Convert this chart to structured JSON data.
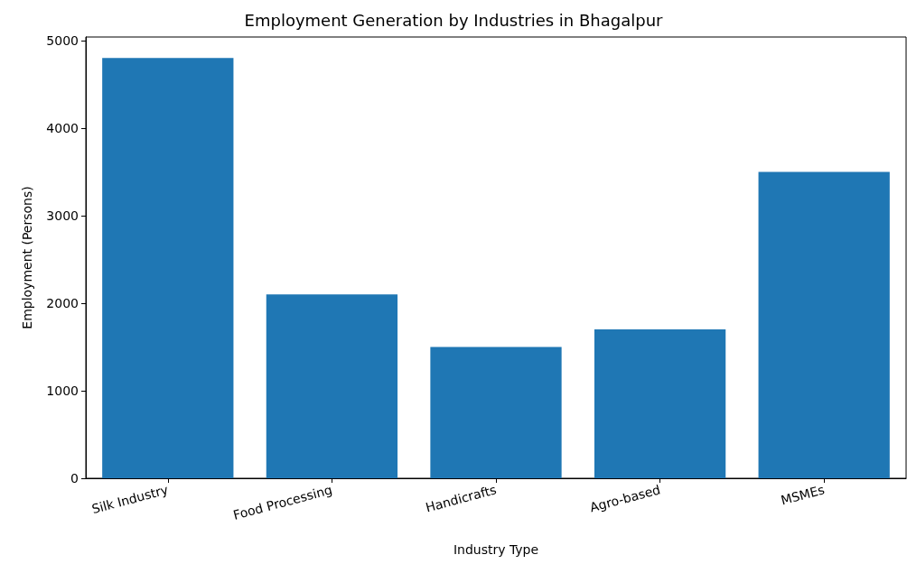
{
  "chart_data": {
    "type": "bar",
    "title": "Employment Generation by Industries in Bhagalpur",
    "xlabel": "Industry Type",
    "ylabel": "Employment (Persons)",
    "categories": [
      "Silk Industry",
      "Food Processing",
      "Handicrafts",
      "Agro-based",
      "MSMEs"
    ],
    "values": [
      4800,
      2100,
      1500,
      1700,
      3500
    ],
    "color": "#1f77b4",
    "ylim": [
      0,
      5040
    ],
    "yticks": [
      0,
      1000,
      2000,
      3000,
      4000,
      5000
    ],
    "grid": false
  }
}
